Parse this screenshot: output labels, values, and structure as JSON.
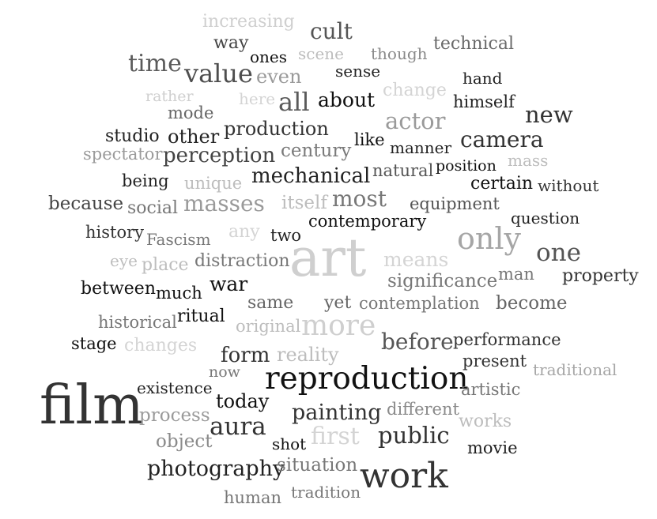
{
  "words": [
    {
      "text": "increasing",
      "color": "#cfcfcf"
    },
    {
      "text": "way",
      "color": "#444444"
    },
    {
      "text": "cult",
      "color": "#555555"
    },
    {
      "text": "ones",
      "color": "#111111"
    },
    {
      "text": "scene",
      "color": "#bdbdbd"
    },
    {
      "text": "though",
      "color": "#8a8a8a"
    },
    {
      "text": "technical",
      "color": "#6a6a6a"
    },
    {
      "text": "time",
      "color": "#5a5a5a"
    },
    {
      "text": "value",
      "color": "#4e4e4e"
    },
    {
      "text": "even",
      "color": "#9a9a9a"
    },
    {
      "text": "sense",
      "color": "#222222"
    },
    {
      "text": "hand",
      "color": "#222222"
    },
    {
      "text": "rather",
      "color": "#cfcfcf"
    },
    {
      "text": "here",
      "color": "#d4d4d4"
    },
    {
      "text": "all",
      "color": "#5a5a5a"
    },
    {
      "text": "about",
      "color": "#111111"
    },
    {
      "text": "change",
      "color": "#d4d4d4"
    },
    {
      "text": "himself",
      "color": "#222222"
    },
    {
      "text": "mode",
      "color": "#666666"
    },
    {
      "text": "actor",
      "color": "#9a9a9a"
    },
    {
      "text": "new",
      "color": "#333333"
    },
    {
      "text": "studio",
      "color": "#222222"
    },
    {
      "text": "other",
      "color": "#222222"
    },
    {
      "text": "production",
      "color": "#333333"
    },
    {
      "text": "like",
      "color": "#111111"
    },
    {
      "text": "manner",
      "color": "#222222"
    },
    {
      "text": "camera",
      "color": "#333333"
    },
    {
      "text": "spectator",
      "color": "#9a9a9a"
    },
    {
      "text": "perception",
      "color": "#444444"
    },
    {
      "text": "century",
      "color": "#7a7a7a"
    },
    {
      "text": "position",
      "color": "#111111"
    },
    {
      "text": "mass",
      "color": "#bdbdbd"
    },
    {
      "text": "mechanical",
      "color": "#222222"
    },
    {
      "text": "natural",
      "color": "#555555"
    },
    {
      "text": "being",
      "color": "#222222"
    },
    {
      "text": "unique",
      "color": "#bdbdbd"
    },
    {
      "text": "certain",
      "color": "#111111"
    },
    {
      "text": "without",
      "color": "#333333"
    },
    {
      "text": "because",
      "color": "#444444"
    },
    {
      "text": "social",
      "color": "#777777"
    },
    {
      "text": "masses",
      "color": "#9a9a9a"
    },
    {
      "text": "itself",
      "color": "#bdbdbd"
    },
    {
      "text": "most",
      "color": "#777777"
    },
    {
      "text": "equipment",
      "color": "#555555"
    },
    {
      "text": "question",
      "color": "#222222"
    },
    {
      "text": "contemporary",
      "color": "#111111"
    },
    {
      "text": "history",
      "color": "#333333"
    },
    {
      "text": "Fascism",
      "color": "#777777"
    },
    {
      "text": "any",
      "color": "#d4d4d4"
    },
    {
      "text": "two",
      "color": "#222222"
    },
    {
      "text": "only",
      "color": "#a6a6a6"
    },
    {
      "text": "one",
      "color": "#555555"
    },
    {
      "text": "eye",
      "color": "#bdbdbd"
    },
    {
      "text": "place",
      "color": "#bdbdbd"
    },
    {
      "text": "distraction",
      "color": "#777777"
    },
    {
      "text": "art",
      "color": "#cfcfcf"
    },
    {
      "text": "means",
      "color": "#d4d4d4"
    },
    {
      "text": "man",
      "color": "#777777"
    },
    {
      "text": "property",
      "color": "#333333"
    },
    {
      "text": "between",
      "color": "#111111"
    },
    {
      "text": "much",
      "color": "#111111"
    },
    {
      "text": "war",
      "color": "#111111"
    },
    {
      "text": "significance",
      "color": "#777777"
    },
    {
      "text": "same",
      "color": "#666666"
    },
    {
      "text": "yet",
      "color": "#666666"
    },
    {
      "text": "contemplation",
      "color": "#777777"
    },
    {
      "text": "become",
      "color": "#666666"
    },
    {
      "text": "historical",
      "color": "#777777"
    },
    {
      "text": "ritual",
      "color": "#111111"
    },
    {
      "text": "original",
      "color": "#bdbdbd"
    },
    {
      "text": "more",
      "color": "#cfcfcf"
    },
    {
      "text": "stage",
      "color": "#111111"
    },
    {
      "text": "changes",
      "color": "#d4d4d4"
    },
    {
      "text": "before",
      "color": "#555555"
    },
    {
      "text": "performance",
      "color": "#333333"
    },
    {
      "text": "form",
      "color": "#333333"
    },
    {
      "text": "reality",
      "color": "#bdbdbd"
    },
    {
      "text": "present",
      "color": "#333333"
    },
    {
      "text": "traditional",
      "color": "#a6a6a6"
    },
    {
      "text": "now",
      "color": "#777777"
    },
    {
      "text": "reproduction",
      "color": "#111111"
    },
    {
      "text": "existence",
      "color": "#222222"
    },
    {
      "text": "artistic",
      "color": "#777777"
    },
    {
      "text": "film",
      "color": "#333333"
    },
    {
      "text": "today",
      "color": "#111111"
    },
    {
      "text": "process",
      "color": "#9a9a9a"
    },
    {
      "text": "painting",
      "color": "#333333"
    },
    {
      "text": "different",
      "color": "#8a8a8a"
    },
    {
      "text": "works",
      "color": "#bdbdbd"
    },
    {
      "text": "aura",
      "color": "#333333"
    },
    {
      "text": "object",
      "color": "#8a8a8a"
    },
    {
      "text": "shot",
      "color": "#111111"
    },
    {
      "text": "first",
      "color": "#d4d4d4"
    },
    {
      "text": "public",
      "color": "#333333"
    },
    {
      "text": "movie",
      "color": "#222222"
    },
    {
      "text": "photography",
      "color": "#222222"
    },
    {
      "text": "situation",
      "color": "#777777"
    },
    {
      "text": "work",
      "color": "#333333"
    },
    {
      "text": "human",
      "color": "#777777"
    },
    {
      "text": "tradition",
      "color": "#777777"
    }
  ]
}
